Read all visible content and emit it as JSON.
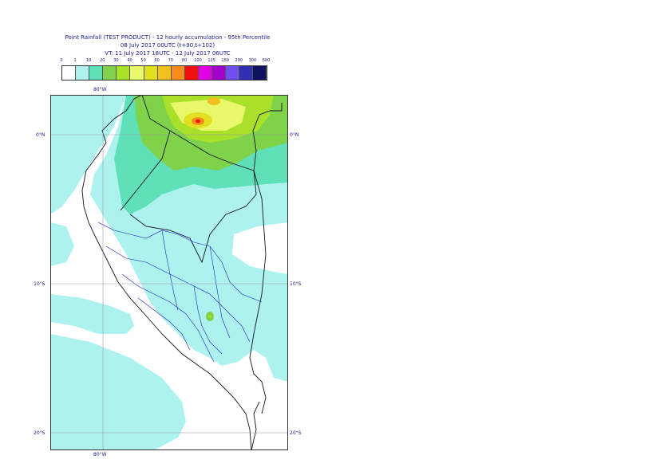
{
  "header": {
    "title_line1": "Point Rainfall (TEST PRODUCT) - 12 hourly accumulation - 95th Percentile",
    "title_line2": "08 July 2017 00UTC (t+90,t+102)",
    "title_line3": "VT: 11 July 2017 18UTC - 12 July 2017 06UTC"
  },
  "legend": {
    "thresholds": [
      "0",
      "1",
      "10",
      "20",
      "30",
      "40",
      "50",
      "60",
      "70",
      "80",
      "100",
      "125",
      "150",
      "200",
      "300",
      "500"
    ],
    "colors": [
      "#ffffff",
      "#aef2f0",
      "#5fe0b8",
      "#7fd24a",
      "#a8e02a",
      "#e8f86a",
      "#e0e020",
      "#f4c020",
      "#f68c1c",
      "#f01010",
      "#e000e0",
      "#a000c8",
      "#7050f0",
      "#3030b0",
      "#101060"
    ]
  },
  "map": {
    "lat_labels": [
      {
        "text": "0°N",
        "lat": 0
      },
      {
        "text": "10°S",
        "lat": -10
      },
      {
        "text": "20°S",
        "lat": -20
      }
    ],
    "lon_label": "80°W",
    "extent": {
      "lon_min": -83.5,
      "lon_max": -67.5,
      "lat_max": 2.6,
      "lat_min": -21.2
    }
  }
}
